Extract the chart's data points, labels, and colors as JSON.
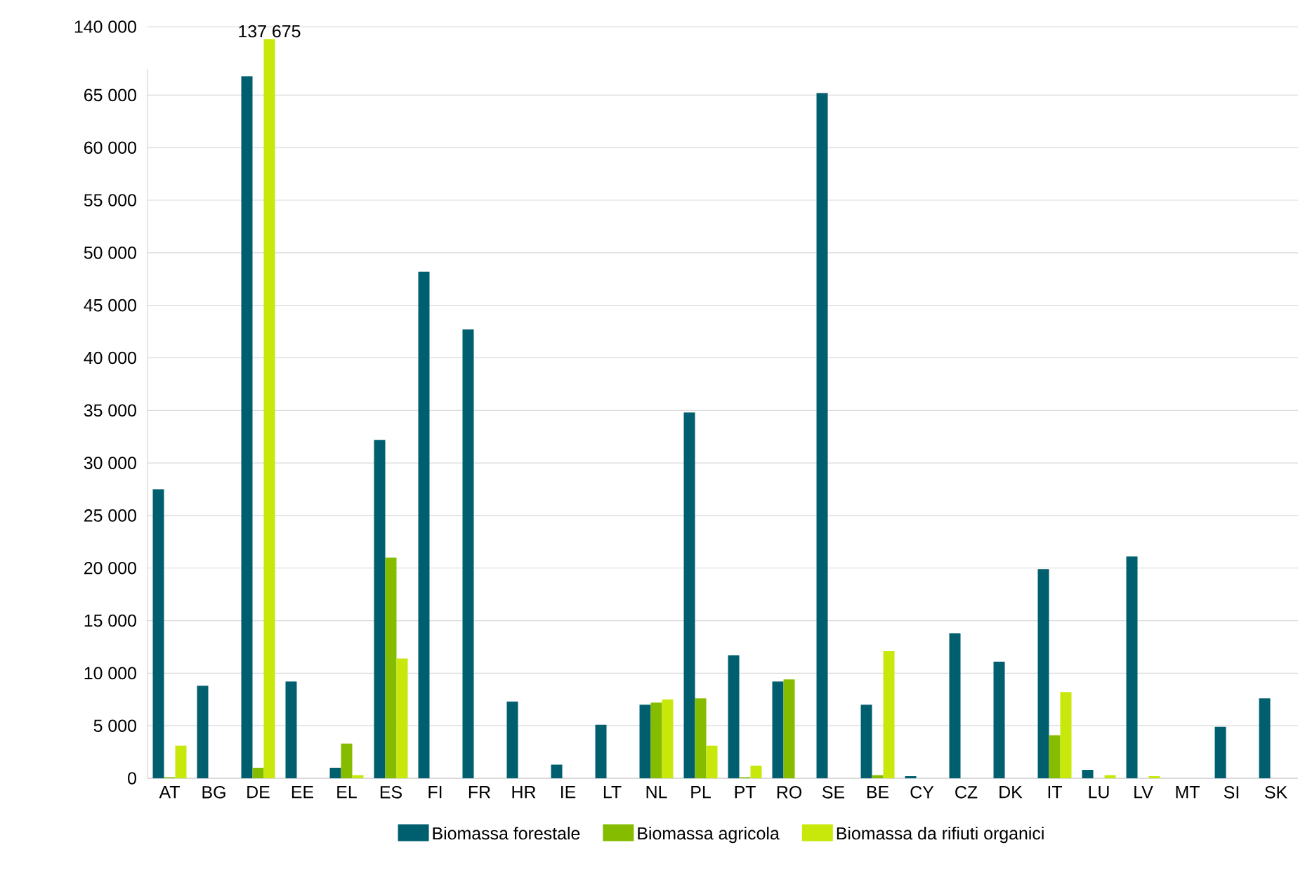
{
  "chart_data": [
    {
      "type": "bar",
      "categories": [
        "AT",
        "BG",
        "DE",
        "EE",
        "EL",
        "ES",
        "FI",
        "FR",
        "HR",
        "IE",
        "LT",
        "NL",
        "PL",
        "PT",
        "RO",
        "SE",
        "BE",
        "CY",
        "CZ",
        "DK",
        "IT",
        "LU",
        "LV",
        "MT",
        "SI",
        "SK"
      ],
      "series": [
        {
          "name": "Biomassa forestale",
          "color": "#005f6e",
          "values": [
            27500,
            8800,
            66800,
            9200,
            1000,
            32200,
            48200,
            42700,
            7300,
            1300,
            5100,
            7000,
            34800,
            11700,
            9200,
            65200,
            7000,
            200,
            13800,
            11100,
            19900,
            800,
            21100,
            0,
            4900,
            7600
          ]
        },
        {
          "name": "Biomassa agricola",
          "color": "#86bc00",
          "values": [
            100,
            0,
            1000,
            0,
            3300,
            21000,
            0,
            0,
            0,
            0,
            0,
            7200,
            7600,
            100,
            9400,
            0,
            300,
            0,
            0,
            0,
            4100,
            0,
            0,
            0,
            0,
            0
          ]
        },
        {
          "name": "Biomassa da rifiuti organici",
          "color": "#c8e70a",
          "values": [
            3100,
            0,
            null,
            0,
            300,
            11400,
            0,
            0,
            0,
            0,
            0,
            7500,
            3100,
            1200,
            0,
            0,
            12100,
            0,
            0,
            0,
            8200,
            300,
            200,
            0,
            0,
            0
          ]
        }
      ],
      "ylim": [
        0,
        67500
      ],
      "yticks": [
        0,
        {
          "value": 5000,
          "label": "5 000"
        },
        {
          "value": 10000,
          "label": "10 000"
        },
        {
          "value": 15000,
          "label": "15 000"
        },
        {
          "value": 20000,
          "label": "20 000"
        },
        {
          "value": 25000,
          "label": "25 000"
        },
        {
          "value": 30000,
          "label": "30 000"
        },
        {
          "value": 35000,
          "label": "35 000"
        },
        {
          "value": 40000,
          "label": "40 000"
        },
        {
          "value": 45000,
          "label": "45 000"
        },
        {
          "value": 50000,
          "label": "50 000"
        },
        {
          "value": 55000,
          "label": "55 000"
        },
        {
          "value": 60000,
          "label": "60 000"
        },
        {
          "value": 65000,
          "label": "65 000"
        }
      ],
      "grid": "y",
      "legend": "bottom"
    },
    {
      "type": "bar",
      "categories": [
        null,
        null,
        null,
        null,
        null,
        null,
        null,
        null,
        null,
        null,
        null,
        null,
        null,
        null,
        null,
        null,
        null,
        null,
        null,
        null,
        null,
        null,
        null,
        null,
        null,
        null
      ],
      "series": [
        {
          "color": "#c8e70a",
          "values": [
            null,
            null,
            137675,
            null,
            null,
            null,
            null,
            null,
            null,
            null,
            null,
            null,
            null,
            null,
            null,
            null,
            null,
            null,
            null,
            null,
            null,
            null,
            null,
            null,
            null,
            null
          ],
          "value_labels": [
            null,
            null,
            "137 675",
            null,
            null,
            null,
            null,
            null,
            null,
            null,
            null,
            null,
            null,
            null,
            null,
            null,
            null,
            null,
            null,
            null,
            null,
            null,
            null,
            null,
            null,
            null
          ]
        }
      ],
      "ylim": [
        0,
        140000
      ],
      "yticks": [
        {
          "value": 140000,
          "label": "140 000"
        }
      ],
      "grid": "y",
      "tick_labels": "y"
    }
  ]
}
